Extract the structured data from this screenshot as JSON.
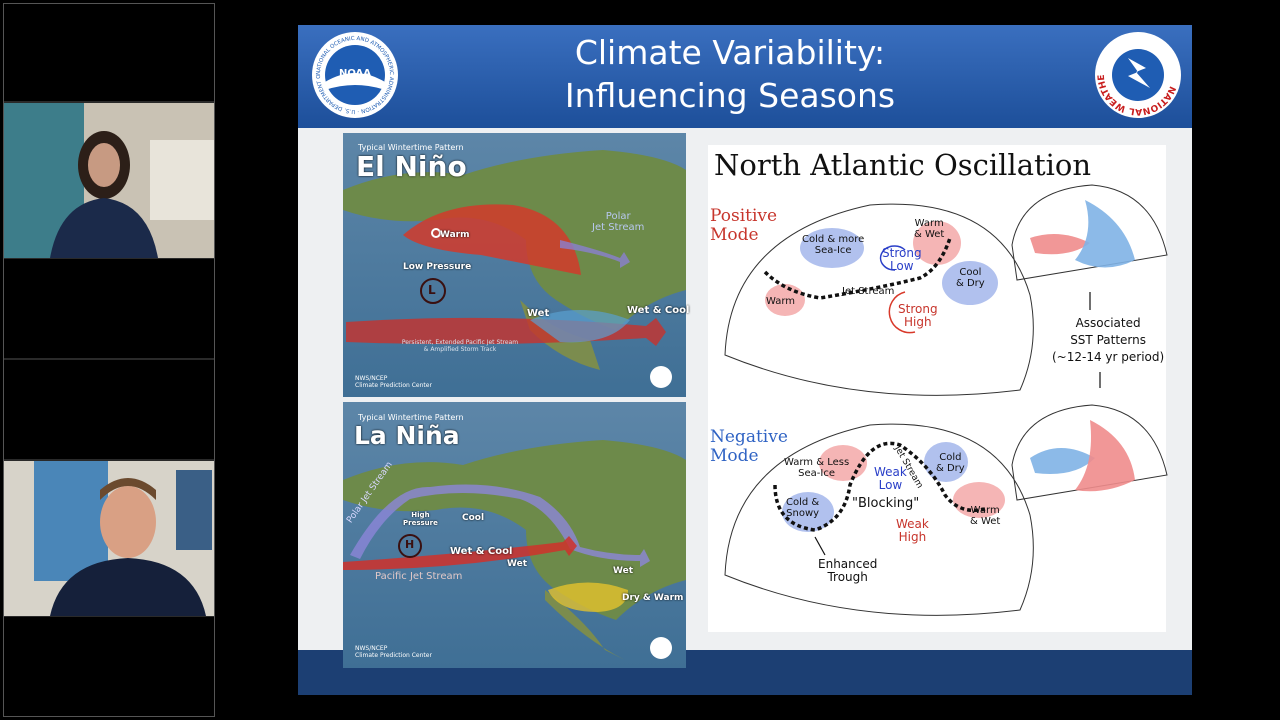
{
  "slide": {
    "title": "Climate Variability:\nInfluencing Seasons",
    "noaa_logo": {
      "abbr": "NOAA",
      "ring": "NATIONAL OCEANIC AND ATMOSPHERIC ADMINISTRATION · U.S. DEPARTMENT OF COMMERCE"
    },
    "nws_logo": {
      "ring": "NATIONAL WEATHER SERVICE"
    },
    "el_nino": {
      "caption": "Typical Wintertime Pattern",
      "heading": "El Niño",
      "warm": "Warm",
      "polar_jet": "Polar\nJet Stream",
      "low_pressure": "Low Pressure",
      "low_symbol": "L",
      "wet": "Wet",
      "wet_cool": "Wet & Cool",
      "jet_note": "Persistent, Extended Pacific Jet Stream\n& Amplified Storm Track",
      "credit": "NWS/NCEP\nClimate Prediction Center"
    },
    "la_nina": {
      "caption": "Typical Wintertime Pattern",
      "heading": "La Niña",
      "polar_jet": "Polar Jet Stream",
      "high_pressure": "High\nPressure",
      "high_symbol": "H",
      "cool": "Cool",
      "wet_cool": "Wet & Cool",
      "pacific_jet": "Pacific Jet Stream",
      "wet_west": "Wet",
      "wet_east": "Wet",
      "dry_warm": "Dry & Warm",
      "credit": "NWS/NCEP\nClimate Prediction Center"
    },
    "nao": {
      "title": "North Atlantic Oscillation",
      "positive_mode": "Positive\nMode",
      "pos_cold_ice": "Cold & more\nSea-Ice",
      "pos_warm_wet": "Warm\n& Wet",
      "pos_strong_low": "Strong\nLow",
      "pos_cool_dry": "Cool\n& Dry",
      "pos_jet": "Jet Stream",
      "pos_warm": "Warm",
      "pos_strong_high": "Strong\nHigh",
      "sst_note": "Associated\nSST Patterns\n(~12-14 yr period)",
      "negative_mode": "Negative\nMode",
      "neg_warm_ice": "Warm & Less\nSea-Ice",
      "neg_weak_low": "Weak\nLow",
      "neg_jet": "Jet Stream",
      "neg_cold_dry": "Cold\n& Dry",
      "neg_cold_snowy": "Cold &\nSnowy",
      "neg_blocking": "\"Blocking\"",
      "neg_weak_high": "Weak\nHigh",
      "neg_warm_wet": "Warm\n& Wet",
      "neg_trough": "Enhanced\nTrough"
    }
  }
}
